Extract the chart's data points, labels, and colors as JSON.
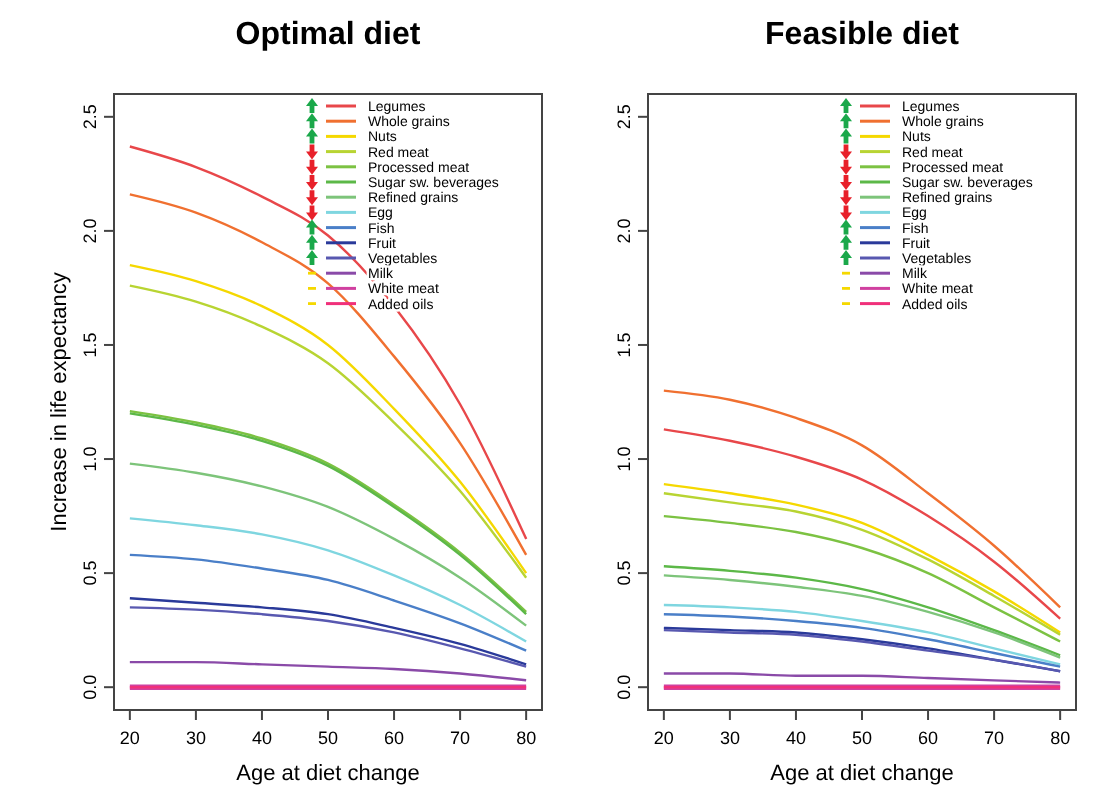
{
  "chart_data": [
    {
      "type": "line",
      "title": "Optimal diet",
      "xlabel": "Age at diet change",
      "ylabel": "Increase in life expectancy",
      "x": [
        20,
        30,
        40,
        50,
        60,
        70,
        80
      ],
      "xlim": [
        17.6,
        82.4
      ],
      "ylim": [
        -0.1,
        2.6
      ],
      "xticks": [
        20,
        30,
        40,
        50,
        60,
        70,
        80
      ],
      "yticks": [
        {
          "value": 0,
          "label": "0.0"
        },
        {
          "value": 0.5,
          "label": "0.5"
        },
        {
          "value": 1,
          "label": "1.0"
        },
        {
          "value": 1.5,
          "label": "1.5"
        },
        {
          "value": 2,
          "label": "2.0"
        },
        {
          "value": 2.5,
          "label": "2.5"
        }
      ],
      "grid": false,
      "legend": "top right",
      "series": [
        {
          "name": "Legumes",
          "color": "#e8474a",
          "values": [
            2.37,
            2.28,
            2.15,
            1.98,
            1.67,
            1.24,
            0.65
          ]
        },
        {
          "name": "Whole grains",
          "color": "#f07030",
          "values": [
            2.16,
            2.08,
            1.95,
            1.77,
            1.45,
            1.07,
            0.58
          ]
        },
        {
          "name": "Nuts",
          "color": "#f5d800",
          "values": [
            1.85,
            1.78,
            1.67,
            1.5,
            1.22,
            0.9,
            0.5
          ]
        },
        {
          "name": "Red meat",
          "color": "#b8d432",
          "values": [
            1.76,
            1.69,
            1.58,
            1.42,
            1.16,
            0.86,
            0.48
          ]
        },
        {
          "name": "Processed meat",
          "color": "#7cc242",
          "values": [
            1.21,
            1.16,
            1.09,
            0.98,
            0.8,
            0.59,
            0.33
          ]
        },
        {
          "name": "Sugar  sw. beverages",
          "color": "#5cb848",
          "values": [
            1.2,
            1.15,
            1.08,
            0.97,
            0.79,
            0.58,
            0.32
          ]
        },
        {
          "name": "Refined grains",
          "color": "#7dc47a",
          "values": [
            0.98,
            0.94,
            0.88,
            0.79,
            0.65,
            0.48,
            0.27
          ]
        },
        {
          "name": "Egg",
          "color": "#7fd6e0",
          "values": [
            0.74,
            0.71,
            0.67,
            0.6,
            0.49,
            0.36,
            0.2
          ]
        },
        {
          "name": "Fish",
          "color": "#4a7fc8",
          "values": [
            0.58,
            0.56,
            0.52,
            0.47,
            0.38,
            0.28,
            0.16
          ]
        },
        {
          "name": "Fruit",
          "color": "#2a3a9a",
          "values": [
            0.39,
            0.37,
            0.35,
            0.32,
            0.26,
            0.19,
            0.1
          ]
        },
        {
          "name": "Vegetables",
          "color": "#5858b0",
          "values": [
            0.35,
            0.34,
            0.32,
            0.29,
            0.24,
            0.17,
            0.09
          ]
        },
        {
          "name": "Milk",
          "color": "#8a4aa8",
          "values": [
            0.11,
            0.11,
            0.1,
            0.09,
            0.08,
            0.06,
            0.03
          ]
        },
        {
          "name": "White meat",
          "color": "#d040a0",
          "values": [
            0,
            0,
            0,
            0,
            0,
            0,
            0
          ]
        },
        {
          "name": "Added oils",
          "color": "#f0307a",
          "values": [
            0,
            0,
            0,
            0,
            0,
            0,
            0
          ]
        }
      ]
    },
    {
      "type": "line",
      "title": "Feasible diet",
      "xlabel": "Age at diet change",
      "x": [
        20,
        30,
        40,
        50,
        60,
        70,
        80
      ],
      "xlim": [
        17.6,
        82.4
      ],
      "ylim": [
        -0.1,
        2.6
      ],
      "xticks": [
        20,
        30,
        40,
        50,
        60,
        70,
        80
      ],
      "yticks": [
        {
          "value": 0,
          "label": "0.0"
        },
        {
          "value": 0.5,
          "label": "0.5"
        },
        {
          "value": 1,
          "label": "1.0"
        },
        {
          "value": 1.5,
          "label": "1.5"
        },
        {
          "value": 2,
          "label": "2.0"
        },
        {
          "value": 2.5,
          "label": "2.5"
        }
      ],
      "grid": false,
      "legend": "top right",
      "series": [
        {
          "name": "Legumes",
          "color": "#e8474a",
          "values": [
            1.13,
            1.08,
            1.01,
            0.91,
            0.75,
            0.55,
            0.3
          ]
        },
        {
          "name": "Whole grains",
          "color": "#f07030",
          "values": [
            1.3,
            1.26,
            1.18,
            1.06,
            0.85,
            0.62,
            0.35
          ]
        },
        {
          "name": "Nuts",
          "color": "#f5d800",
          "values": [
            0.89,
            0.85,
            0.8,
            0.72,
            0.58,
            0.42,
            0.24
          ]
        },
        {
          "name": "Red meat",
          "color": "#b8d432",
          "values": [
            0.85,
            0.81,
            0.77,
            0.69,
            0.56,
            0.4,
            0.23
          ]
        },
        {
          "name": "Processed meat",
          "color": "#7cc242",
          "values": [
            0.75,
            0.72,
            0.68,
            0.61,
            0.5,
            0.35,
            0.2
          ]
        },
        {
          "name": "Sugar  sw. beverages",
          "color": "#5cb848",
          "values": [
            0.53,
            0.51,
            0.48,
            0.43,
            0.35,
            0.25,
            0.14
          ]
        },
        {
          "name": "Refined grains",
          "color": "#7dc47a",
          "values": [
            0.49,
            0.47,
            0.44,
            0.4,
            0.33,
            0.24,
            0.13
          ]
        },
        {
          "name": "Egg",
          "color": "#7fd6e0",
          "values": [
            0.36,
            0.35,
            0.33,
            0.29,
            0.24,
            0.17,
            0.1
          ]
        },
        {
          "name": "Fish",
          "color": "#4a7fc8",
          "values": [
            0.32,
            0.31,
            0.29,
            0.26,
            0.21,
            0.15,
            0.09
          ]
        },
        {
          "name": "Fruit",
          "color": "#2a3a9a",
          "values": [
            0.26,
            0.25,
            0.24,
            0.21,
            0.17,
            0.12,
            0.07
          ]
        },
        {
          "name": "Vegetables",
          "color": "#5858b0",
          "values": [
            0.25,
            0.24,
            0.23,
            0.2,
            0.16,
            0.12,
            0.07
          ]
        },
        {
          "name": "Milk",
          "color": "#8a4aa8",
          "values": [
            0.06,
            0.06,
            0.05,
            0.05,
            0.04,
            0.03,
            0.02
          ]
        },
        {
          "name": "White meat",
          "color": "#d040a0",
          "values": [
            0,
            0,
            0,
            0,
            0,
            0,
            0
          ]
        },
        {
          "name": "Added oils",
          "color": "#f0307a",
          "values": [
            0,
            0,
            0,
            0,
            0,
            0,
            0
          ]
        }
      ]
    }
  ]
}
